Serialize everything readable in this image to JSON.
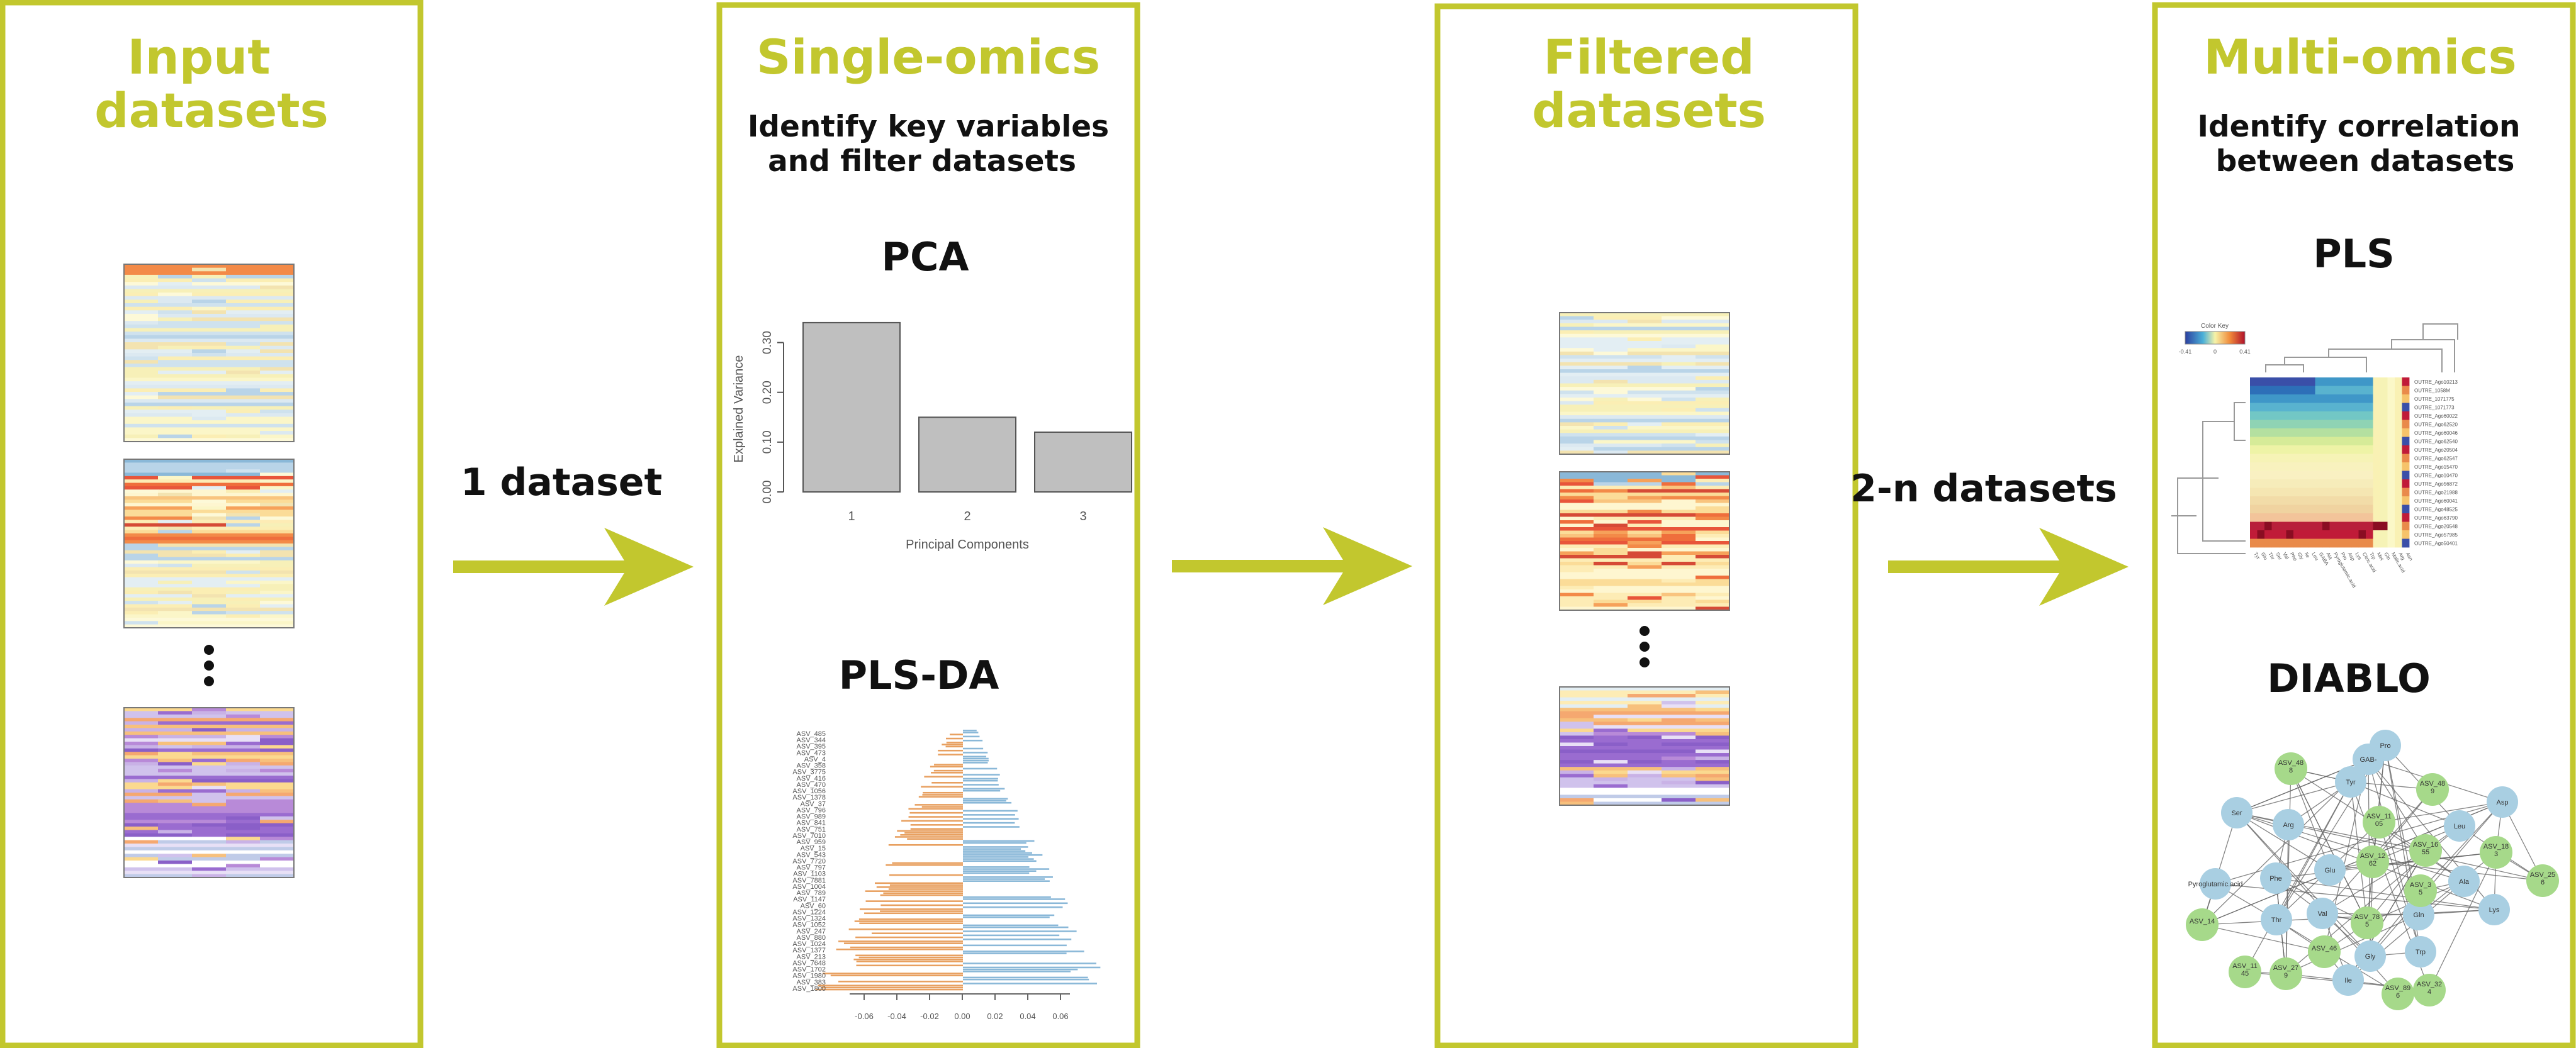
{
  "panels": [
    {
      "title_line1": "Input",
      "title_line2": "datasets"
    },
    {
      "title": "Single-omics",
      "subtitle_line1": "Identify key variables",
      "subtitle_line2": "and filter datasets",
      "method_top": "PCA",
      "method_bottom": "PLS-DA"
    },
    {
      "title_line1": "Filtered",
      "title_line2": "datasets"
    },
    {
      "title": "Multi-omics",
      "subtitle_line1": "Identify correlation",
      "subtitle_line2": "between datasets",
      "method_top": "PLS",
      "method_bottom": "DIABLO"
    }
  ],
  "arrows": [
    {
      "label": "1 dataset"
    },
    {
      "label": ""
    },
    {
      "label": "2-n datasets"
    }
  ],
  "colors": {
    "accent": "#c2c72e",
    "bar": "#bfbfbf",
    "orange": "#e8a060",
    "blue": "#8ab8d8",
    "node_blue": "#a9cfe2",
    "node_green": "#a6d98a"
  },
  "chart_data": [
    {
      "type": "bar",
      "categories": [
        "1",
        "2",
        "3"
      ],
      "values": [
        0.34,
        0.15,
        0.12
      ],
      "xlabel": "Principal Components",
      "ylabel": "Explained Variance",
      "ylim": [
        0,
        0.35
      ],
      "yticks": [
        "0.00",
        "0.10",
        "0.20",
        "0.30"
      ],
      "grid": false
    }
  ],
  "plsda": {
    "labels": [
      "ASV_485",
      "ASV_344",
      "ASV_395",
      "ASV_473",
      "ASV_4",
      "ASV_358",
      "ASV_3775",
      "ASV_416",
      "ASV_470",
      "ASV_1056",
      "ASV_1378",
      "ASV_37",
      "ASV_796",
      "ASV_989",
      "ASV_841",
      "ASV_751",
      "ASV_7010",
      "ASV_959",
      "ASV_15",
      "ASV_543",
      "ASV_7720",
      "ASV_797",
      "ASV_1103",
      "ASV_7881",
      "ASV_1004",
      "ASV_789",
      "ASV_1147",
      "ASV_60",
      "ASV_1224",
      "ASV_1324",
      "ASV_1052",
      "ASV_247",
      "ASV_880",
      "ASV_1024",
      "ASV_1377",
      "ASV_213",
      "ASV_7648",
      "ASV_1702",
      "ASV_1980",
      "ASV_383",
      "ASV_1800"
    ],
    "ticks": [
      "-0.06",
      "-0.04",
      "-0.02",
      "0.00",
      "0.02",
      "0.04",
      "0.06"
    ]
  },
  "pls_heatmap": {
    "legend_title": "Color Key",
    "legend_ticks": [
      "-0.41",
      "0",
      "0.41"
    ],
    "row_labels": [
      "OUTRE_Ago10213",
      "OUTRE_1058M",
      "OUTRE_1071775",
      "OUTRE_1071773",
      "OUTRE_Ago60022",
      "OUTRE_Ago62520",
      "OUTRE_Ago60046",
      "OUTRE_Ago62540",
      "OUTRE_Ago20504",
      "OUTRE_Ago62547",
      "OUTRE_Ago15470",
      "OUTRE_Ago10470",
      "OUTRE_Ago56872",
      "OUTRE_Ago21988",
      "OUTRE_Ago60041",
      "OUTRE_Ago48525",
      "OUTRE_Ago63790",
      "OUTRE_Ago20548",
      "OUTRE_Ago57985",
      "OUTRE_Ago50401"
    ],
    "col_labels": [
      "Tyr",
      "Glu",
      "Thr",
      "Ser",
      "Val",
      "Phe",
      "Gly",
      "Ile",
      "Leu",
      "GABA",
      "Ala",
      "Pyroglutamic.acid",
      "Pro",
      "Asp",
      "Lys",
      "Citric.acid",
      "Trp",
      "Met",
      "Gln",
      "Malic.acid",
      "Arg",
      "Asn"
    ]
  },
  "diablo": {
    "blue_nodes": [
      "Pro",
      "GAB-",
      "Tyr",
      "Arg",
      "Ser",
      "Phe",
      "Glu",
      "Pyroglutamic.acid",
      "Thr",
      "Val",
      "Leu",
      "Asp",
      "Ala",
      "Lys",
      "Gln",
      "Trp",
      "Gly",
      "Ile"
    ],
    "green_nodes": [
      "ASV_48 8",
      "ASV_48 9",
      "ASV_11 05",
      "ASV_12 62",
      "ASV_16 55",
      "ASV_18 3",
      "ASV_25 6",
      "ASV_14",
      "ASV_78 5",
      "ASV_46",
      "ASV_11 45",
      "ASV_27 9",
      "ASV_89 6",
      "ASV_32 4",
      "ASV_3 5"
    ]
  }
}
